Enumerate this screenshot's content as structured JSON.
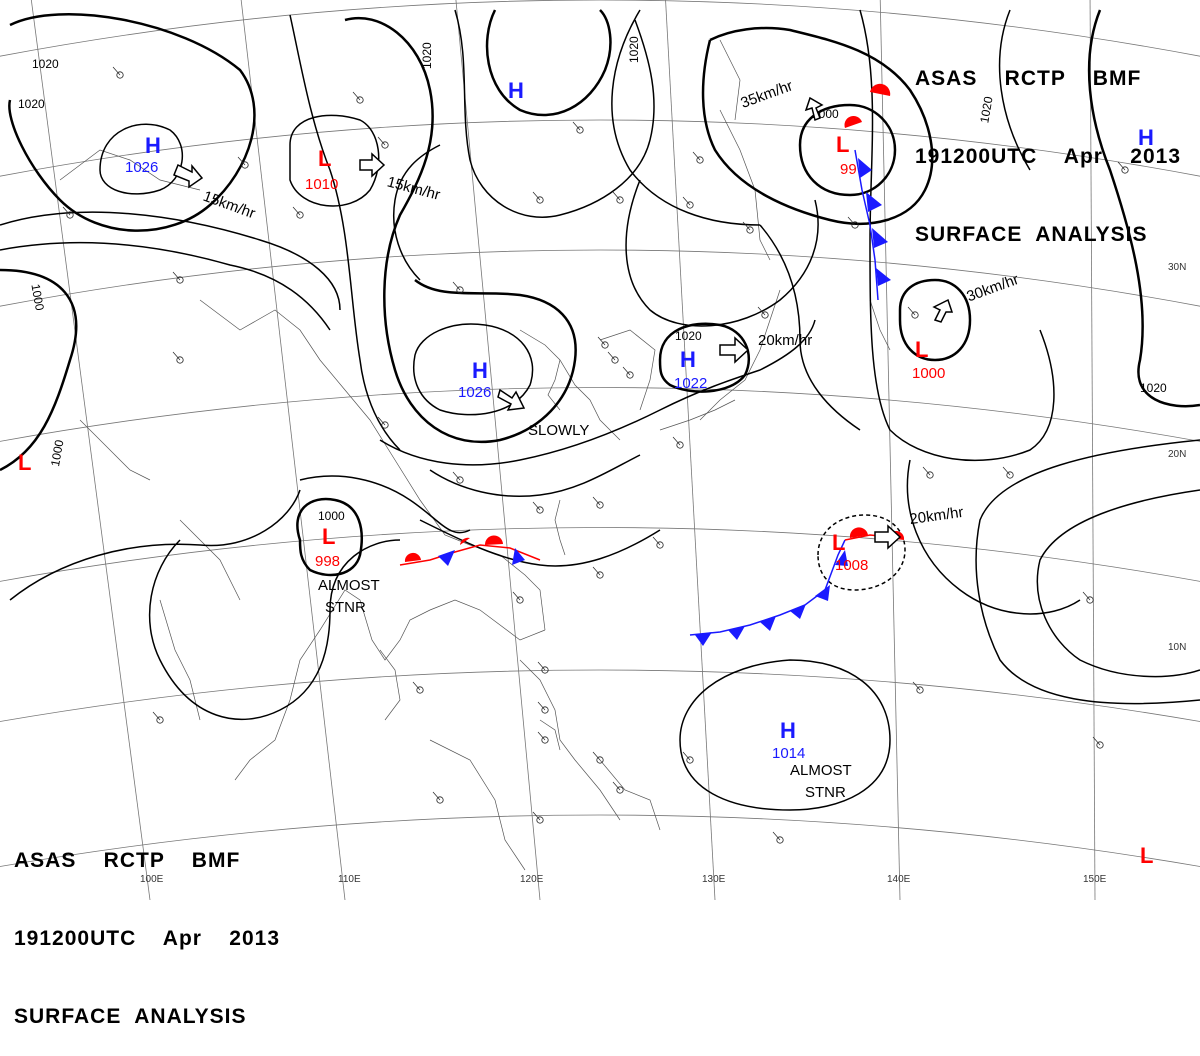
{
  "header": {
    "line1": "ASAS    RCTP    BMF",
    "line2": "191200UTC    Apr    2013",
    "line3": "SURFACE  ANALYSIS"
  },
  "footer": {
    "line1": "ASAS    RCTP    BMF",
    "line2": "191200UTC    Apr    2013",
    "line3": "SURFACE  ANALYSIS"
  },
  "colors": {
    "high": "#1a1aff",
    "low": "#ff0000",
    "cold_front": "#1a1aff",
    "warm_front": "#ff0000",
    "isobar": "#000000"
  },
  "pressure_systems": [
    {
      "id": "h-nw",
      "type": "H",
      "value": "1026"
    },
    {
      "id": "l-nw",
      "type": "L",
      "value": "1010"
    },
    {
      "id": "h-north",
      "type": "H",
      "value": ""
    },
    {
      "id": "h-center",
      "type": "H",
      "value": "1026"
    },
    {
      "id": "h-japan",
      "type": "H",
      "value": "1022"
    },
    {
      "id": "l-ne",
      "type": "L",
      "value": "99"
    },
    {
      "id": "l-east",
      "type": "L",
      "value": "1000"
    },
    {
      "id": "h-ne",
      "type": "H",
      "value": ""
    },
    {
      "id": "l-west",
      "type": "L",
      "value": ""
    },
    {
      "id": "l-indochina",
      "type": "L",
      "value": "998"
    },
    {
      "id": "l-pacific",
      "type": "L",
      "value": "1008"
    },
    {
      "id": "h-south",
      "type": "H",
      "value": "1014"
    },
    {
      "id": "l-se",
      "type": "L",
      "value": ""
    }
  ],
  "isobar_labels": [
    "1020",
    "1020",
    "1020",
    "1020",
    "1020",
    "1000",
    "1000",
    "1020",
    "1000",
    "1020",
    "1000"
  ],
  "movement_labels": [
    "15km/hr",
    "15km/hr",
    "35km/hr",
    "20km/hr",
    "30km/hr",
    "20km/hr",
    "SLOWLY"
  ],
  "notes": [
    "ALMOST",
    "STNR",
    "ALMOST",
    "STNR"
  ],
  "grid": {
    "longitudes": [
      "100E",
      "110E",
      "120E",
      "130E",
      "140E",
      "150E"
    ],
    "latitudes": [
      "30N",
      "20N",
      "10N"
    ]
  }
}
